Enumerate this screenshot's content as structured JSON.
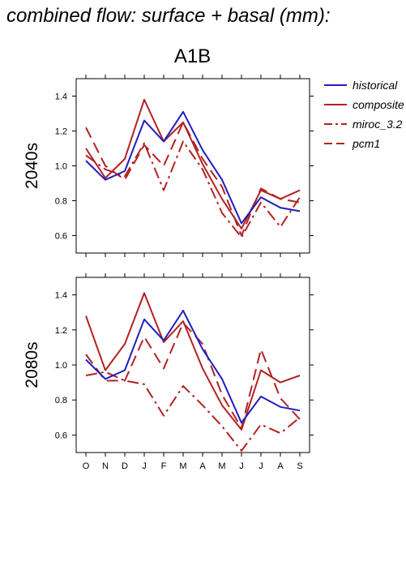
{
  "title": "combined flow: surface + basal (mm):",
  "scenario": "A1B",
  "colors": {
    "historical": "#1f1fbf",
    "model": "#b22222"
  },
  "chart_data": [
    {
      "type": "line",
      "panel_label": "2040s",
      "categories": [
        "O",
        "N",
        "D",
        "J",
        "F",
        "M",
        "A",
        "M",
        "J",
        "J",
        "A",
        "S"
      ],
      "ylim": [
        0.5,
        1.5
      ],
      "yticks": [
        "0.6",
        "0.8",
        "1.0",
        "1.2",
        "1.4"
      ],
      "series": [
        {
          "name": "historical",
          "style": "solid",
          "color": "#1f1fbf",
          "values": [
            1.03,
            0.92,
            0.97,
            1.26,
            1.14,
            1.31,
            1.09,
            0.92,
            0.67,
            0.82,
            0.76,
            0.74
          ]
        },
        {
          "name": "composite",
          "style": "solid",
          "color": "#b22222",
          "values": [
            1.1,
            0.93,
            1.04,
            1.38,
            1.14,
            1.25,
            1.01,
            0.81,
            0.64,
            0.86,
            0.81,
            0.86
          ]
        },
        {
          "name": "miroc_3.2",
          "style": "dashdot",
          "color": "#b22222",
          "values": [
            1.06,
            0.98,
            0.94,
            1.13,
            0.86,
            1.14,
            0.98,
            0.73,
            0.59,
            0.79,
            0.65,
            0.82
          ]
        },
        {
          "name": "pcm1",
          "style": "dashed",
          "color": "#b22222",
          "values": [
            1.22,
            1.0,
            0.92,
            1.12,
            1.0,
            1.25,
            1.04,
            0.88,
            0.6,
            0.87,
            0.81,
            0.79
          ]
        }
      ]
    },
    {
      "type": "line",
      "panel_label": "2080s",
      "categories": [
        "O",
        "N",
        "D",
        "J",
        "F",
        "M",
        "A",
        "M",
        "J",
        "J",
        "A",
        "S"
      ],
      "ylim": [
        0.5,
        1.5
      ],
      "yticks": [
        "0.6",
        "0.8",
        "1.0",
        "1.2",
        "1.4"
      ],
      "series": [
        {
          "name": "historical",
          "style": "solid",
          "color": "#1f1fbf",
          "values": [
            1.03,
            0.92,
            0.97,
            1.26,
            1.14,
            1.31,
            1.09,
            0.92,
            0.67,
            0.82,
            0.76,
            0.74
          ]
        },
        {
          "name": "composite",
          "style": "solid",
          "color": "#b22222",
          "values": [
            1.28,
            0.97,
            1.12,
            1.41,
            1.13,
            1.25,
            0.98,
            0.77,
            0.63,
            0.97,
            0.9,
            0.94
          ]
        },
        {
          "name": "miroc_3.2",
          "style": "dashdot",
          "color": "#b22222",
          "values": [
            0.94,
            0.96,
            0.91,
            0.89,
            0.71,
            0.88,
            0.77,
            0.65,
            0.51,
            0.66,
            0.61,
            0.7
          ]
        },
        {
          "name": "pcm1",
          "style": "dashed",
          "color": "#b22222",
          "values": [
            1.06,
            0.91,
            0.91,
            1.16,
            0.98,
            1.24,
            1.12,
            0.83,
            0.64,
            1.09,
            0.81,
            0.69
          ]
        }
      ]
    }
  ],
  "legend": [
    {
      "label": "historical",
      "style": "solid",
      "color": "#1f1fbf"
    },
    {
      "label": "composite",
      "style": "solid",
      "color": "#b22222"
    },
    {
      "label": "miroc_3.2",
      "style": "dashdot",
      "color": "#b22222"
    },
    {
      "label": "pcm1",
      "style": "dashed",
      "color": "#b22222"
    }
  ]
}
